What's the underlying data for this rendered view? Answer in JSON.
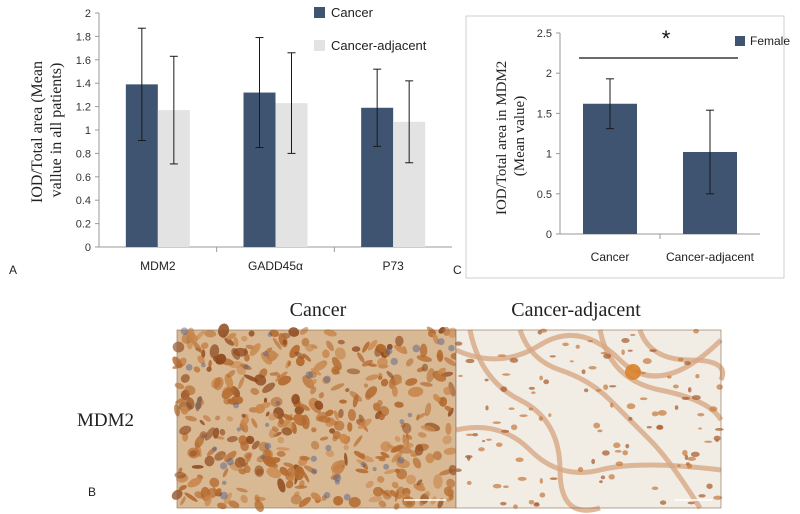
{
  "panel_letters": {
    "a": "A",
    "b": "B",
    "c": "C"
  },
  "colors": {
    "cancer": "#3f5470",
    "adjacent": "#e3e3e3",
    "axis": "#9a9a9a",
    "error": "#1a1a1a"
  },
  "chart_data": [
    {
      "type": "bar",
      "panel": "A",
      "ylabel": "IOD/Total area (Mean value in all patients)",
      "ylabel_lines": [
        "IOD/Total area (Mean",
        "vallue in all patients)"
      ],
      "categories": [
        "MDM2",
        "GADD45α",
        "P73"
      ],
      "ylim": [
        0,
        2
      ],
      "yticks": [
        "0",
        "0.2",
        "0.4",
        "0.6",
        "0.8",
        "1",
        "1.2",
        "1.4",
        "1.6",
        "1.8",
        "2"
      ],
      "legend_position": "top-right",
      "series": [
        {
          "name": "Cancer",
          "values": [
            1.39,
            1.32,
            1.19
          ],
          "error": [
            0.48,
            0.47,
            0.33
          ]
        },
        {
          "name": "Cancer-adjacent",
          "values": [
            1.17,
            1.23,
            1.07
          ],
          "error": [
            0.46,
            0.43,
            0.35
          ]
        }
      ]
    },
    {
      "type": "bar",
      "panel": "C",
      "ylabel": "IOD/Total area in MDM2 (Mean value)",
      "ylabel_lines": [
        "IOD/Total area in MDM2",
        "(Mean value)"
      ],
      "categories": [
        "Cancer",
        "Cancer-adjacent"
      ],
      "ylim": [
        0,
        2.5
      ],
      "yticks": [
        "0",
        "0.5",
        "1",
        "1.5",
        "2",
        "2.5"
      ],
      "legend_position": "top-right",
      "series": [
        {
          "name": "Female",
          "values": [
            1.62,
            1.02
          ],
          "error": [
            0.31,
            0.52
          ]
        }
      ],
      "annotation": "*"
    }
  ],
  "micrographs": {
    "left_title": "Cancer",
    "right_title": "Cancer-adjacent",
    "row_label": "MDM2"
  }
}
